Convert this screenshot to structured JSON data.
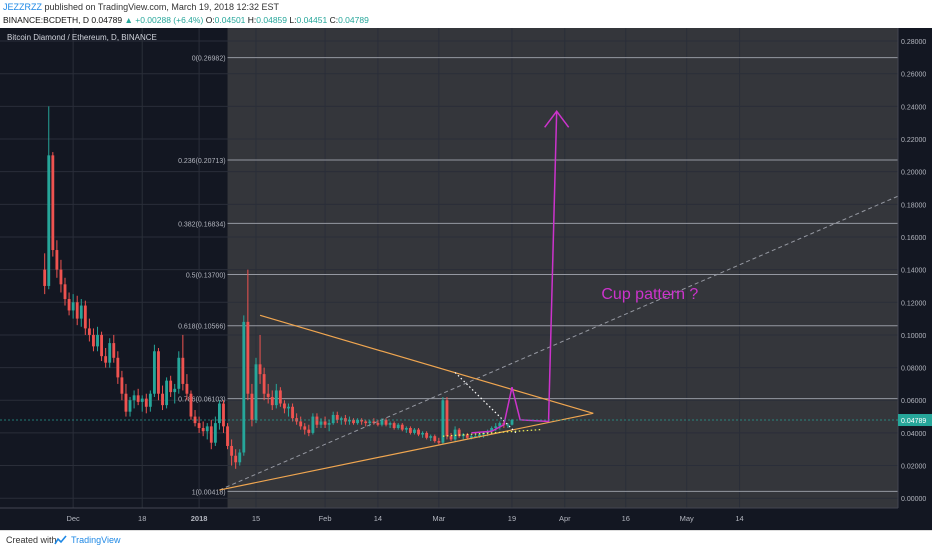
{
  "header": {
    "author": "JEZZRZZ",
    "published": "published on TradingView.com, March 19, 2018 12:32 EST",
    "symbol": "BINANCE:BCDETH, D",
    "last": "0.04789",
    "change": "+0.00288 (+6.4%)",
    "o_label": "O:",
    "o_value": "0.04501",
    "h_label": "H:",
    "h_value": "0.04859",
    "l_label": "L:",
    "l_value": "0.04451",
    "c_label": "C:",
    "c_value": "0.04789"
  },
  "footer": {
    "created": "Created with",
    "brand": "TradingView"
  },
  "colors": {
    "background_dark": "#131722",
    "background_selected": "#34363b",
    "grid": "#2a2e39",
    "candle_up": "#26a69a",
    "candle_down": "#ef5350",
    "fib_line": "#9598a1",
    "trendline": "#f0a650",
    "annotation": "#cc33cc",
    "dashed_line": "#9598a1",
    "dotted_line": "#ffffff",
    "dotted_yellow": "#f5f55a",
    "price_tag": "#26a69a"
  },
  "chart_data": {
    "type": "candlestick",
    "title": "Bitcoin Diamond / Ethereum, D, BINANCE",
    "y_axis": {
      "min": -0.006,
      "max": 0.288,
      "side": "right",
      "ticks": [
        "0.28000",
        "0.26000",
        "0.24000",
        "0.22000",
        "0.20000",
        "0.18000",
        "0.16000",
        "0.14000",
        "0.12000",
        "0.10000",
        "0.08000",
        "0.06000",
        "0.04000",
        "0.02000",
        "0.00000"
      ],
      "tick_values": [
        0.28,
        0.26,
        0.24,
        0.22,
        0.2,
        0.18,
        0.16,
        0.14,
        0.12,
        0.1,
        0.08,
        0.06,
        0.04,
        0.02,
        0.0
      ],
      "current_price_label": "0.04789",
      "current_price": 0.04789
    },
    "x_axis": {
      "start_date": "2017-11-13",
      "end_date": "2018-06-22",
      "ticks": [
        {
          "label": "Dec",
          "date": "2017-12-01"
        },
        {
          "label": "18",
          "date": "2017-12-18"
        },
        {
          "label": "2018",
          "date": "2018-01-01",
          "bold": true
        },
        {
          "label": "15",
          "date": "2018-01-15"
        },
        {
          "label": "Feb",
          "date": "2018-02-01"
        },
        {
          "label": "14",
          "date": "2018-02-14"
        },
        {
          "label": "Mar",
          "date": "2018-03-01"
        },
        {
          "label": "19",
          "date": "2018-03-19"
        },
        {
          "label": "Apr",
          "date": "2018-04-01"
        },
        {
          "label": "16",
          "date": "2018-04-16"
        },
        {
          "label": "May",
          "date": "2018-05-01"
        },
        {
          "label": "14",
          "date": "2018-05-14"
        }
      ]
    },
    "fib_range": {
      "start_date": "2018-01-08",
      "end_date": "2018-06-22"
    },
    "fib_levels": [
      {
        "label": "0(0.26982)",
        "value": 0.26982
      },
      {
        "label": "0.236(0.20713)",
        "value": 0.20713
      },
      {
        "label": "0.382(0.16834)",
        "value": 0.16834
      },
      {
        "label": "0.5(0.13700)",
        "value": 0.137
      },
      {
        "label": "0.618(0.10566)",
        "value": 0.10566
      },
      {
        "label": "0.786(0.06103)",
        "value": 0.06103
      },
      {
        "label": "1(0.00418)",
        "value": 0.00418
      }
    ],
    "candles": [
      {
        "date": "2017-11-24",
        "o": 0.14,
        "h": 0.15,
        "l": 0.125,
        "c": 0.13
      },
      {
        "date": "2017-11-25",
        "o": 0.13,
        "h": 0.24,
        "l": 0.128,
        "c": 0.21
      },
      {
        "date": "2017-11-26",
        "o": 0.21,
        "h": 0.212,
        "l": 0.148,
        "c": 0.152
      },
      {
        "date": "2017-11-27",
        "o": 0.152,
        "h": 0.158,
        "l": 0.135,
        "c": 0.14
      },
      {
        "date": "2017-11-28",
        "o": 0.14,
        "h": 0.146,
        "l": 0.126,
        "c": 0.131
      },
      {
        "date": "2017-11-29",
        "o": 0.131,
        "h": 0.135,
        "l": 0.118,
        "c": 0.122
      },
      {
        "date": "2017-11-30",
        "o": 0.122,
        "h": 0.126,
        "l": 0.112,
        "c": 0.115
      },
      {
        "date": "2017-12-01",
        "o": 0.115,
        "h": 0.125,
        "l": 0.11,
        "c": 0.12
      },
      {
        "date": "2017-12-02",
        "o": 0.12,
        "h": 0.124,
        "l": 0.106,
        "c": 0.11
      },
      {
        "date": "2017-12-03",
        "o": 0.11,
        "h": 0.122,
        "l": 0.105,
        "c": 0.118
      },
      {
        "date": "2017-12-04",
        "o": 0.118,
        "h": 0.121,
        "l": 0.1,
        "c": 0.104
      },
      {
        "date": "2017-12-05",
        "o": 0.104,
        "h": 0.11,
        "l": 0.096,
        "c": 0.1
      },
      {
        "date": "2017-12-06",
        "o": 0.1,
        "h": 0.104,
        "l": 0.09,
        "c": 0.093
      },
      {
        "date": "2017-12-07",
        "o": 0.093,
        "h": 0.105,
        "l": 0.09,
        "c": 0.1
      },
      {
        "date": "2017-12-08",
        "o": 0.1,
        "h": 0.102,
        "l": 0.084,
        "c": 0.087
      },
      {
        "date": "2017-12-09",
        "o": 0.087,
        "h": 0.092,
        "l": 0.08,
        "c": 0.083
      },
      {
        "date": "2017-12-10",
        "o": 0.083,
        "h": 0.098,
        "l": 0.08,
        "c": 0.095
      },
      {
        "date": "2017-12-11",
        "o": 0.095,
        "h": 0.1,
        "l": 0.083,
        "c": 0.086
      },
      {
        "date": "2017-12-12",
        "o": 0.086,
        "h": 0.09,
        "l": 0.07,
        "c": 0.074
      },
      {
        "date": "2017-12-13",
        "o": 0.074,
        "h": 0.078,
        "l": 0.06,
        "c": 0.064
      },
      {
        "date": "2017-12-14",
        "o": 0.064,
        "h": 0.07,
        "l": 0.05,
        "c": 0.053
      },
      {
        "date": "2017-12-15",
        "o": 0.053,
        "h": 0.062,
        "l": 0.05,
        "c": 0.06
      },
      {
        "date": "2017-12-16",
        "o": 0.06,
        "h": 0.066,
        "l": 0.055,
        "c": 0.063
      },
      {
        "date": "2017-12-17",
        "o": 0.063,
        "h": 0.067,
        "l": 0.057,
        "c": 0.059
      },
      {
        "date": "2017-12-18",
        "o": 0.059,
        "h": 0.063,
        "l": 0.053,
        "c": 0.061
      },
      {
        "date": "2017-12-19",
        "o": 0.061,
        "h": 0.064,
        "l": 0.052,
        "c": 0.056
      },
      {
        "date": "2017-12-20",
        "o": 0.056,
        "h": 0.066,
        "l": 0.053,
        "c": 0.064
      },
      {
        "date": "2017-12-21",
        "o": 0.064,
        "h": 0.094,
        "l": 0.062,
        "c": 0.09
      },
      {
        "date": "2017-12-22",
        "o": 0.09,
        "h": 0.092,
        "l": 0.06,
        "c": 0.064
      },
      {
        "date": "2017-12-23",
        "o": 0.064,
        "h": 0.069,
        "l": 0.054,
        "c": 0.057
      },
      {
        "date": "2017-12-24",
        "o": 0.057,
        "h": 0.074,
        "l": 0.055,
        "c": 0.072
      },
      {
        "date": "2017-12-25",
        "o": 0.072,
        "h": 0.075,
        "l": 0.062,
        "c": 0.065
      },
      {
        "date": "2017-12-26",
        "o": 0.065,
        "h": 0.07,
        "l": 0.058,
        "c": 0.067
      },
      {
        "date": "2017-12-27",
        "o": 0.067,
        "h": 0.09,
        "l": 0.064,
        "c": 0.086
      },
      {
        "date": "2017-12-28",
        "o": 0.086,
        "h": 0.1,
        "l": 0.066,
        "c": 0.07
      },
      {
        "date": "2017-12-29",
        "o": 0.07,
        "h": 0.076,
        "l": 0.06,
        "c": 0.064
      },
      {
        "date": "2017-12-30",
        "o": 0.064,
        "h": 0.066,
        "l": 0.048,
        "c": 0.05
      },
      {
        "date": "2017-12-31",
        "o": 0.05,
        "h": 0.054,
        "l": 0.044,
        "c": 0.046
      },
      {
        "date": "2018-01-01",
        "o": 0.046,
        "h": 0.05,
        "l": 0.04,
        "c": 0.043
      },
      {
        "date": "2018-01-02",
        "o": 0.043,
        "h": 0.047,
        "l": 0.038,
        "c": 0.041
      },
      {
        "date": "2018-01-03",
        "o": 0.041,
        "h": 0.046,
        "l": 0.036,
        "c": 0.044
      },
      {
        "date": "2018-01-04",
        "o": 0.044,
        "h": 0.048,
        "l": 0.03,
        "c": 0.034
      },
      {
        "date": "2018-01-05",
        "o": 0.034,
        "h": 0.05,
        "l": 0.032,
        "c": 0.046
      },
      {
        "date": "2018-01-06",
        "o": 0.046,
        "h": 0.06,
        "l": 0.042,
        "c": 0.058
      },
      {
        "date": "2018-01-07",
        "o": 0.058,
        "h": 0.06,
        "l": 0.04,
        "c": 0.044
      },
      {
        "date": "2018-01-08",
        "o": 0.044,
        "h": 0.046,
        "l": 0.03,
        "c": 0.032
      },
      {
        "date": "2018-01-09",
        "o": 0.032,
        "h": 0.036,
        "l": 0.02,
        "c": 0.026
      },
      {
        "date": "2018-01-10",
        "o": 0.026,
        "h": 0.03,
        "l": 0.018,
        "c": 0.022
      },
      {
        "date": "2018-01-11",
        "o": 0.022,
        "h": 0.03,
        "l": 0.02,
        "c": 0.028
      },
      {
        "date": "2018-01-12",
        "o": 0.028,
        "h": 0.112,
        "l": 0.026,
        "c": 0.108
      },
      {
        "date": "2018-01-13",
        "o": 0.108,
        "h": 0.14,
        "l": 0.06,
        "c": 0.064
      },
      {
        "date": "2018-01-14",
        "o": 0.064,
        "h": 0.07,
        "l": 0.044,
        "c": 0.048
      },
      {
        "date": "2018-01-15",
        "o": 0.048,
        "h": 0.086,
        "l": 0.046,
        "c": 0.082
      },
      {
        "date": "2018-01-16",
        "o": 0.082,
        "h": 0.1,
        "l": 0.07,
        "c": 0.076
      },
      {
        "date": "2018-01-17",
        "o": 0.076,
        "h": 0.08,
        "l": 0.06,
        "c": 0.064
      },
      {
        "date": "2018-01-18",
        "o": 0.064,
        "h": 0.07,
        "l": 0.058,
        "c": 0.062
      },
      {
        "date": "2018-01-19",
        "o": 0.062,
        "h": 0.066,
        "l": 0.054,
        "c": 0.057
      },
      {
        "date": "2018-01-20",
        "o": 0.057,
        "h": 0.07,
        "l": 0.055,
        "c": 0.066
      },
      {
        "date": "2018-01-21",
        "o": 0.066,
        "h": 0.068,
        "l": 0.056,
        "c": 0.058
      },
      {
        "date": "2018-01-22",
        "o": 0.058,
        "h": 0.06,
        "l": 0.052,
        "c": 0.055
      },
      {
        "date": "2018-01-23",
        "o": 0.055,
        "h": 0.058,
        "l": 0.05,
        "c": 0.056
      },
      {
        "date": "2018-01-24",
        "o": 0.056,
        "h": 0.058,
        "l": 0.047,
        "c": 0.049
      },
      {
        "date": "2018-01-25",
        "o": 0.049,
        "h": 0.052,
        "l": 0.045,
        "c": 0.047
      },
      {
        "date": "2018-01-26",
        "o": 0.047,
        "h": 0.05,
        "l": 0.042,
        "c": 0.044
      },
      {
        "date": "2018-01-27",
        "o": 0.044,
        "h": 0.046,
        "l": 0.039,
        "c": 0.042
      },
      {
        "date": "2018-01-28",
        "o": 0.042,
        "h": 0.045,
        "l": 0.038,
        "c": 0.04
      },
      {
        "date": "2018-01-29",
        "o": 0.04,
        "h": 0.052,
        "l": 0.039,
        "c": 0.05
      },
      {
        "date": "2018-01-30",
        "o": 0.05,
        "h": 0.052,
        "l": 0.043,
        "c": 0.045
      },
      {
        "date": "2018-01-31",
        "o": 0.045,
        "h": 0.049,
        "l": 0.043,
        "c": 0.047
      },
      {
        "date": "2018-02-01",
        "o": 0.047,
        "h": 0.05,
        "l": 0.043,
        "c": 0.045
      },
      {
        "date": "2018-02-02",
        "o": 0.045,
        "h": 0.048,
        "l": 0.041,
        "c": 0.046
      },
      {
        "date": "2018-02-03",
        "o": 0.046,
        "h": 0.053,
        "l": 0.045,
        "c": 0.051
      },
      {
        "date": "2018-02-04",
        "o": 0.051,
        "h": 0.053,
        "l": 0.046,
        "c": 0.048
      },
      {
        "date": "2018-02-05",
        "o": 0.048,
        "h": 0.05,
        "l": 0.045,
        "c": 0.049
      },
      {
        "date": "2018-02-06",
        "o": 0.049,
        "h": 0.051,
        "l": 0.045,
        "c": 0.047
      },
      {
        "date": "2018-02-07",
        "o": 0.047,
        "h": 0.05,
        "l": 0.045,
        "c": 0.048
      },
      {
        "date": "2018-02-08",
        "o": 0.048,
        "h": 0.049,
        "l": 0.045,
        "c": 0.046
      },
      {
        "date": "2018-02-09",
        "o": 0.046,
        "h": 0.049,
        "l": 0.045,
        "c": 0.048
      },
      {
        "date": "2018-02-10",
        "o": 0.048,
        "h": 0.049,
        "l": 0.045,
        "c": 0.047
      },
      {
        "date": "2018-02-11",
        "o": 0.047,
        "h": 0.048,
        "l": 0.044,
        "c": 0.046
      },
      {
        "date": "2018-02-12",
        "o": 0.046,
        "h": 0.048,
        "l": 0.044,
        "c": 0.047
      },
      {
        "date": "2018-02-13",
        "o": 0.047,
        "h": 0.049,
        "l": 0.045,
        "c": 0.046
      },
      {
        "date": "2018-02-14",
        "o": 0.046,
        "h": 0.048,
        "l": 0.044,
        "c": 0.045
      },
      {
        "date": "2018-02-15",
        "o": 0.045,
        "h": 0.049,
        "l": 0.044,
        "c": 0.048
      },
      {
        "date": "2018-02-16",
        "o": 0.048,
        "h": 0.049,
        "l": 0.044,
        "c": 0.045
      },
      {
        "date": "2018-02-17",
        "o": 0.045,
        "h": 0.047,
        "l": 0.043,
        "c": 0.046
      },
      {
        "date": "2018-02-18",
        "o": 0.046,
        "h": 0.047,
        "l": 0.042,
        "c": 0.043
      },
      {
        "date": "2018-02-19",
        "o": 0.043,
        "h": 0.046,
        "l": 0.042,
        "c": 0.045
      },
      {
        "date": "2018-02-20",
        "o": 0.045,
        "h": 0.046,
        "l": 0.041,
        "c": 0.042
      },
      {
        "date": "2018-02-21",
        "o": 0.042,
        "h": 0.044,
        "l": 0.04,
        "c": 0.043
      },
      {
        "date": "2018-02-22",
        "o": 0.043,
        "h": 0.044,
        "l": 0.039,
        "c": 0.04
      },
      {
        "date": "2018-02-23",
        "o": 0.04,
        "h": 0.043,
        "l": 0.039,
        "c": 0.042
      },
      {
        "date": "2018-02-24",
        "o": 0.042,
        "h": 0.043,
        "l": 0.038,
        "c": 0.039
      },
      {
        "date": "2018-02-25",
        "o": 0.039,
        "h": 0.041,
        "l": 0.037,
        "c": 0.04
      },
      {
        "date": "2018-02-26",
        "o": 0.04,
        "h": 0.041,
        "l": 0.036,
        "c": 0.037
      },
      {
        "date": "2018-02-27",
        "o": 0.037,
        "h": 0.039,
        "l": 0.035,
        "c": 0.038
      },
      {
        "date": "2018-02-28",
        "o": 0.038,
        "h": 0.039,
        "l": 0.034,
        "c": 0.035
      },
      {
        "date": "2018-03-01",
        "o": 0.035,
        "h": 0.037,
        "l": 0.033,
        "c": 0.034
      },
      {
        "date": "2018-03-02",
        "o": 0.034,
        "h": 0.062,
        "l": 0.033,
        "c": 0.06
      },
      {
        "date": "2018-03-03",
        "o": 0.06,
        "h": 0.062,
        "l": 0.036,
        "c": 0.038
      },
      {
        "date": "2018-03-04",
        "o": 0.038,
        "h": 0.04,
        "l": 0.035,
        "c": 0.036
      },
      {
        "date": "2018-03-05",
        "o": 0.036,
        "h": 0.044,
        "l": 0.035,
        "c": 0.042
      },
      {
        "date": "2018-03-06",
        "o": 0.042,
        "h": 0.043,
        "l": 0.037,
        "c": 0.038
      },
      {
        "date": "2018-03-07",
        "o": 0.038,
        "h": 0.04,
        "l": 0.036,
        "c": 0.039
      },
      {
        "date": "2018-03-08",
        "o": 0.039,
        "h": 0.04,
        "l": 0.036,
        "c": 0.037
      },
      {
        "date": "2018-03-09",
        "o": 0.037,
        "h": 0.039,
        "l": 0.036,
        "c": 0.038
      },
      {
        "date": "2018-03-10",
        "o": 0.038,
        "h": 0.039,
        "l": 0.037,
        "c": 0.038
      },
      {
        "date": "2018-03-11",
        "o": 0.038,
        "h": 0.04,
        "l": 0.037,
        "c": 0.039
      },
      {
        "date": "2018-03-12",
        "o": 0.039,
        "h": 0.041,
        "l": 0.037,
        "c": 0.04
      },
      {
        "date": "2018-03-13",
        "o": 0.04,
        "h": 0.042,
        "l": 0.038,
        "c": 0.041
      },
      {
        "date": "2018-03-14",
        "o": 0.041,
        "h": 0.044,
        "l": 0.039,
        "c": 0.043
      },
      {
        "date": "2018-03-15",
        "o": 0.043,
        "h": 0.046,
        "l": 0.041,
        "c": 0.044
      },
      {
        "date": "2018-03-16",
        "o": 0.044,
        "h": 0.047,
        "l": 0.042,
        "c": 0.046
      },
      {
        "date": "2018-03-17",
        "o": 0.046,
        "h": 0.047,
        "l": 0.043,
        "c": 0.045
      },
      {
        "date": "2018-03-18",
        "o": 0.045,
        "h": 0.046,
        "l": 0.043,
        "c": 0.045
      },
      {
        "date": "2018-03-19",
        "o": 0.04501,
        "h": 0.04859,
        "l": 0.04451,
        "c": 0.04789
      }
    ],
    "drawings": {
      "triangle_upper": {
        "from": {
          "date": "2018-01-16",
          "value": 0.112
        },
        "to": {
          "date": "2018-04-08",
          "value": 0.052
        }
      },
      "triangle_lower": {
        "from": {
          "date": "2018-01-06",
          "value": 0.005
        },
        "to": {
          "date": "2018-04-08",
          "value": 0.052
        }
      },
      "dashed_trend": {
        "from": {
          "date": "2018-01-06",
          "value": 0.005
        },
        "to": {
          "date": "2018-06-22",
          "value": 0.185
        }
      },
      "dotted_white": [
        {
          "date": "2018-03-05",
          "value": 0.077
        },
        {
          "date": "2018-03-20",
          "value": 0.04
        }
      ],
      "dotted_yellow": [
        {
          "date": "2018-03-02",
          "value": 0.038
        },
        {
          "date": "2018-03-26",
          "value": 0.042
        }
      ],
      "cup_path": [
        {
          "date": "2018-03-09",
          "value": 0.04
        },
        {
          "date": "2018-03-14",
          "value": 0.041
        },
        {
          "date": "2018-03-17",
          "value": 0.045
        },
        {
          "date": "2018-03-19",
          "value": 0.068
        },
        {
          "date": "2018-03-21",
          "value": 0.048
        },
        {
          "date": "2018-03-28",
          "value": 0.047
        },
        {
          "date": "2018-03-30",
          "value": 0.237
        }
      ],
      "cup_label": {
        "text": "Cup pattern ?",
        "date": "2018-04-10",
        "value": 0.122
      }
    }
  }
}
